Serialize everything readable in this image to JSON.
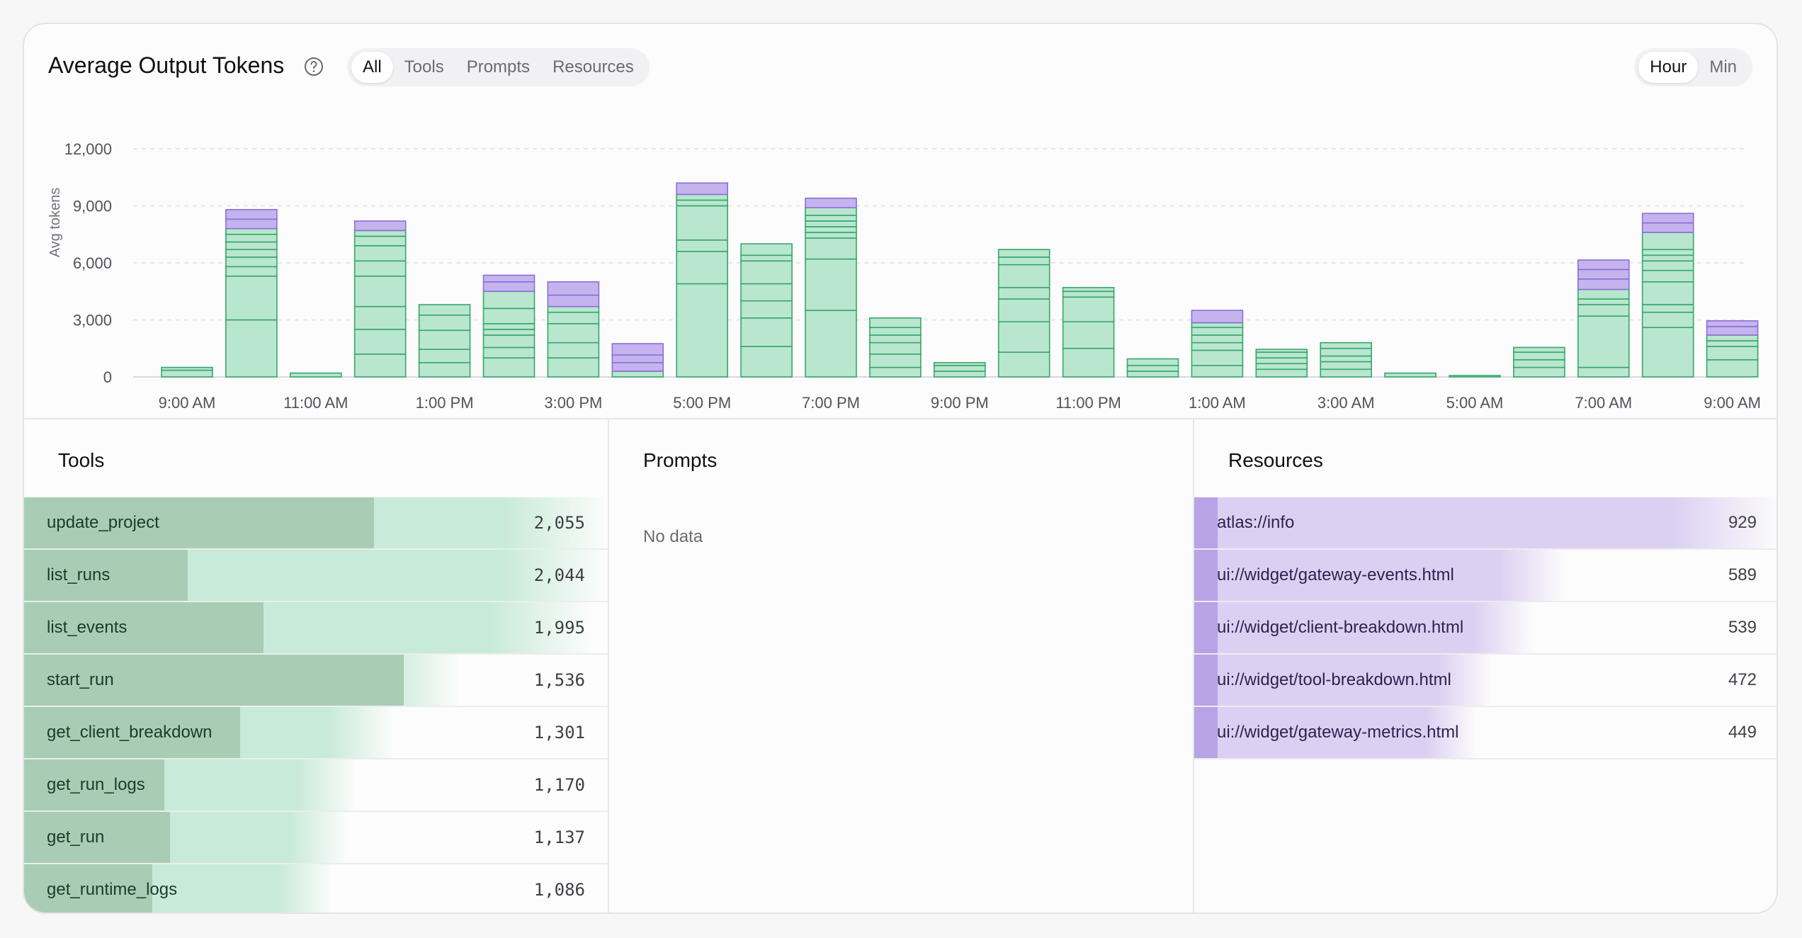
{
  "header": {
    "title": "Average Output Tokens",
    "filters": [
      "All",
      "Tools",
      "Prompts",
      "Resources"
    ],
    "active_filter": "All",
    "granularity": [
      "Hour",
      "Min"
    ],
    "active_granularity": "Hour"
  },
  "colors": {
    "green_fill": "#b9e6cf",
    "green_stroke": "#37a66b",
    "purple_fill": "#c5b3ee",
    "purple_stroke": "#8b6fd6",
    "tools_bar_light": "#c8ead8",
    "tools_bar_dark": "#a8cdb4",
    "res_bar_light": "#dcd0f2",
    "res_bar_dark": "#b7a3e6"
  },
  "chart_data": {
    "type": "bar",
    "stacked": true,
    "ylabel": "Avg tokens",
    "ylim": [
      0,
      12000
    ],
    "yticks": [
      "12,000",
      "9,000",
      "6,000",
      "3,000",
      "0"
    ],
    "ytick_values": [
      12000,
      9000,
      6000,
      3000,
      0
    ],
    "xtick_labels": [
      "9:00 AM",
      "11:00 AM",
      "1:00 PM",
      "3:00 PM",
      "5:00 PM",
      "7:00 PM",
      "9:00 PM",
      "11:00 PM",
      "1:00 AM",
      "3:00 AM",
      "5:00 AM",
      "7:00 AM",
      "9:00 AM"
    ],
    "bars": [
      {
        "green": [
          350,
          150
        ],
        "purple": []
      },
      {
        "green": [
          3000,
          2300,
          500,
          500,
          400,
          400,
          400,
          300
        ],
        "purple": [
          500,
          500
        ]
      },
      {
        "green": [
          200
        ],
        "purple": []
      },
      {
        "green": [
          1200,
          1300,
          1200,
          1600,
          800,
          800,
          500,
          300
        ],
        "purple": [
          500
        ]
      },
      {
        "green": [
          750,
          700,
          1000,
          800,
          550
        ],
        "purple": []
      },
      {
        "green": [
          1000,
          550,
          650,
          300,
          300,
          800,
          900
        ],
        "purple": [
          500,
          350
        ]
      },
      {
        "green": [
          1000,
          800,
          1000,
          600,
          300
        ],
        "purple": [
          600,
          700
        ]
      },
      {
        "green": [
          300
        ],
        "purple": [
          450,
          400,
          600
        ]
      },
      {
        "green": [
          4900,
          1700,
          600,
          1800,
          300,
          300
        ],
        "purple": [
          600
        ]
      },
      {
        "green": [
          1600,
          1500,
          900,
          900,
          1200,
          300,
          600
        ],
        "purple": []
      },
      {
        "green": [
          3500,
          2700,
          1100,
          300,
          300,
          300,
          300,
          400
        ],
        "purple": [
          500
        ]
      },
      {
        "green": [
          500,
          700,
          600,
          400,
          400,
          500
        ],
        "purple": []
      },
      {
        "green": [
          300,
          300,
          150
        ],
        "purple": []
      },
      {
        "green": [
          1300,
          1600,
          1200,
          600,
          1200,
          400,
          400
        ],
        "purple": []
      },
      {
        "green": [
          1500,
          1400,
          1300,
          300,
          200
        ],
        "purple": []
      },
      {
        "green": [
          300,
          300,
          350
        ],
        "purple": []
      },
      {
        "green": [
          600,
          800,
          400,
          400,
          400,
          250
        ],
        "purple": [
          650
        ]
      },
      {
        "green": [
          400,
          300,
          300,
          300,
          150
        ],
        "purple": []
      },
      {
        "green": [
          400,
          400,
          300,
          400,
          300
        ],
        "purple": []
      },
      {
        "green": [
          200
        ],
        "purple": []
      },
      {
        "green": [
          70
        ],
        "purple": []
      },
      {
        "green": [
          500,
          400,
          400,
          250
        ],
        "purple": []
      },
      {
        "green": [
          500,
          2700,
          600,
          300,
          500
        ],
        "purple": [
          550,
          500,
          500
        ]
      },
      {
        "green": [
          2600,
          800,
          400,
          1200,
          600,
          500,
          300,
          300,
          900
        ],
        "purple": [
          500,
          500
        ]
      },
      {
        "green": [
          900,
          700,
          300,
          300
        ],
        "purple": [
          450,
          300
        ]
      }
    ]
  },
  "tools": {
    "title": "Tools",
    "items": [
      {
        "name": "update_project",
        "value": "2,055",
        "num": 2055,
        "dark": 0.6
      },
      {
        "name": "list_runs",
        "value": "2,044",
        "num": 2044,
        "dark": 0.28
      },
      {
        "name": "list_events",
        "value": "1,995",
        "num": 1995,
        "dark": 0.41
      },
      {
        "name": "start_run",
        "value": "1,536",
        "num": 1536,
        "dark": 0.65
      },
      {
        "name": "get_client_breakdown",
        "value": "1,301",
        "num": 1301,
        "dark": 0.37
      },
      {
        "name": "get_run_logs",
        "value": "1,170",
        "num": 1170,
        "dark": 0.24
      },
      {
        "name": "get_run",
        "value": "1,137",
        "num": 1137,
        "dark": 0.25
      },
      {
        "name": "get_runtime_logs",
        "value": "1,086",
        "num": 1086,
        "dark": 0.22
      }
    ]
  },
  "prompts": {
    "title": "Prompts",
    "empty_text": "No data"
  },
  "resources": {
    "title": "Resources",
    "items": [
      {
        "name": "atlas://info",
        "value": "929",
        "num": 929
      },
      {
        "name": "ui://widget/gateway-events.html",
        "value": "589",
        "num": 589
      },
      {
        "name": "ui://widget/client-breakdown.html",
        "value": "539",
        "num": 539
      },
      {
        "name": "ui://widget/tool-breakdown.html",
        "value": "472",
        "num": 472
      },
      {
        "name": "ui://widget/gateway-metrics.html",
        "value": "449",
        "num": 449
      }
    ]
  }
}
